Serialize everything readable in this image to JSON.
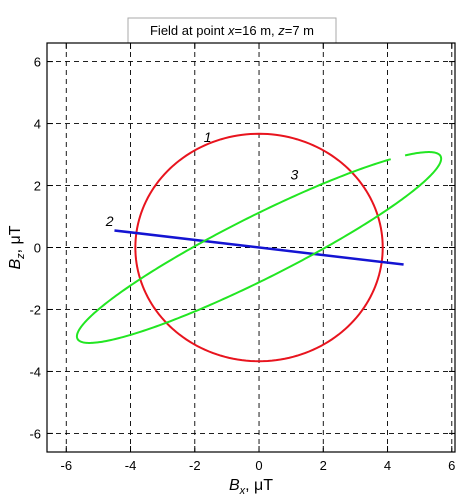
{
  "chart_data": {
    "type": "line",
    "title": "Field at point x=16 m, z=7 m",
    "title_parts": [
      "Field at point ",
      "x",
      "=16 m, ",
      "z",
      "=7 m"
    ],
    "xlabel_main": "B",
    "xlabel_sub": "x",
    "xlabel_unit": ", μT",
    "ylabel_main": "B",
    "ylabel_sub": "z",
    "ylabel_unit": ", μT",
    "xlim": [
      -6.6,
      6.1
    ],
    "ylim": [
      -6.6,
      6.6
    ],
    "xticks": [
      -6,
      -4,
      -2,
      0,
      2,
      4,
      6
    ],
    "yticks": [
      -6,
      -4,
      -2,
      0,
      2,
      4,
      6
    ],
    "grid": true,
    "series": [
      {
        "label": "1",
        "color": "#e8141e",
        "shape": "ellipse",
        "center": [
          0,
          0
        ],
        "semi_axis_x": 3.85,
        "semi_axis_z": 3.67,
        "label_position": [
          -1.6,
          3.4
        ]
      },
      {
        "label": "2",
        "color": "#1414d2",
        "shape": "line",
        "points": [
          [
            -4.5,
            0.55
          ],
          [
            4.5,
            -0.55
          ]
        ],
        "label_position": [
          -4.65,
          0.7
        ]
      },
      {
        "label": "3",
        "color": "#22e622",
        "shape": "ellipse",
        "center": [
          0,
          0
        ],
        "major_axis_end": [
          5.65,
          2.95
        ],
        "semi_minor": 1.0,
        "gap": [
          [
            4.1,
            3.12
          ],
          [
            4.5,
            3.12
          ]
        ],
        "label_position": [
          1.1,
          2.2
        ]
      }
    ]
  }
}
